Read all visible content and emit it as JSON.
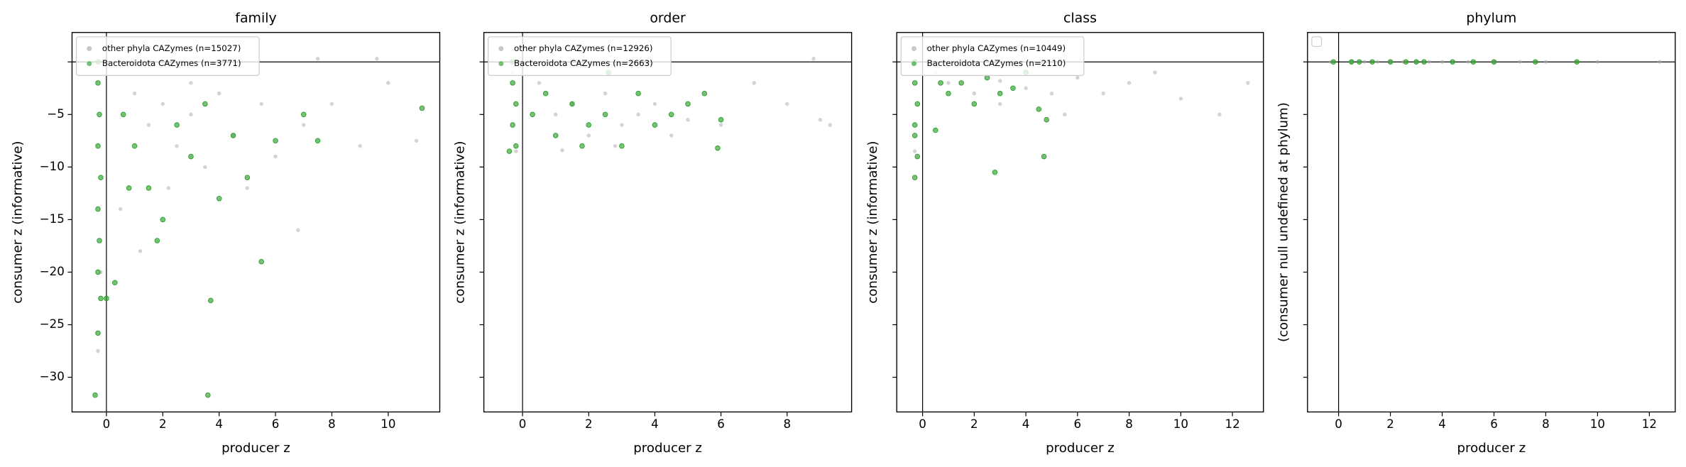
{
  "chart_data": [
    {
      "type": "scatter",
      "title": "family",
      "xlabel": "producer z",
      "ylabel": "consumer z (informative)",
      "xlim": [
        -1.22,
        11.83
      ],
      "ylim": [
        -33.3,
        2.8
      ],
      "xticks": [
        0,
        2,
        4,
        6,
        8,
        10
      ],
      "yticks": [
        0,
        {
          "value": -5,
          "label": "−5"
        },
        {
          "value": -10,
          "label": "−10"
        },
        {
          "value": -15,
          "label": "−15"
        },
        {
          "value": -20,
          "label": "−20"
        },
        {
          "value": -25,
          "label": "−25"
        },
        {
          "value": -30,
          "label": "−30"
        }
      ],
      "legend": "upper left",
      "series": [
        {
          "name": "other phyla CAZymes (n=15027)",
          "color": "#a9a9a9",
          "x": [
            1,
            1.5,
            2,
            2.5,
            3,
            3.5,
            4,
            4.5,
            5,
            5.5,
            6,
            7,
            8,
            9,
            10,
            11,
            6.8,
            -0.3,
            -0.2,
            0.5,
            1.2,
            2.2,
            3,
            7.5,
            9.6
          ],
          "y": [
            -3,
            -6,
            -4,
            -8,
            -5,
            -10,
            -3,
            -7,
            -12,
            -4,
            -9,
            -6,
            -4,
            -8,
            -2,
            -7.5,
            -16,
            -27.5,
            -20,
            -14,
            -18,
            -12,
            -2,
            0.3,
            0.3
          ]
        },
        {
          "name": "Bacteroidota CAZymes (n=3771)",
          "color": "#2ca02c",
          "x": [
            -0.3,
            -0.3,
            -0.25,
            -0.3,
            -0.2,
            -0.3,
            -0.25,
            -0.3,
            -0.2,
            -0.3,
            -0.4,
            0,
            0.3,
            1,
            1.5,
            2,
            2.5,
            3,
            3.5,
            4,
            4.5,
            5,
            5.5,
            6,
            7,
            7.5,
            11.2,
            3.7,
            3.6,
            1.8,
            0.6,
            0.8
          ],
          "y": [
            0,
            -2,
            -5,
            -8,
            -11,
            -14,
            -17,
            -20,
            -22.5,
            -25.8,
            -31.7,
            -22.5,
            -21,
            -8,
            -12,
            -15,
            -6,
            -9,
            -4,
            -13,
            -7,
            -11,
            -19,
            -7.5,
            -5,
            -7.5,
            -4.4,
            -22.7,
            -31.7,
            -17,
            -5,
            -12
          ]
        }
      ]
    },
    {
      "type": "scatter",
      "title": "order",
      "xlabel": "producer z",
      "ylabel": "consumer z (informative)",
      "xlim": [
        -1.17,
        9.95
      ],
      "ylim": [
        -33.3,
        2.8
      ],
      "xticks": [
        0,
        2,
        4,
        6,
        8
      ],
      "legend": "upper left",
      "series": [
        {
          "name": "other phyla CAZymes (n=12926)",
          "color": "#a9a9a9",
          "x": [
            0.5,
            1,
            1.5,
            2,
            2.5,
            3,
            3.5,
            4,
            4.5,
            5,
            6,
            7,
            8,
            9,
            9.3,
            8.8,
            -0.2,
            -0.3,
            1.2,
            2.8
          ],
          "y": [
            -2,
            -5,
            -4,
            -7,
            -3,
            -6,
            -5,
            -4,
            -7,
            -5.5,
            -6,
            -2,
            -4,
            -5.5,
            -6,
            0.3,
            -8.5,
            -1,
            -8.4,
            -8
          ]
        },
        {
          "name": "Bacteroidota CAZymes (n=2663)",
          "color": "#2ca02c",
          "x": [
            -0.3,
            -0.3,
            -0.2,
            -0.3,
            -0.2,
            -0.4,
            0.3,
            0.7,
            1,
            1.5,
            2,
            2.5,
            3,
            3.5,
            4,
            4.5,
            5,
            5.5,
            6,
            5.9,
            1.8,
            2.6
          ],
          "y": [
            0,
            -2,
            -4,
            -6,
            -8,
            -8.5,
            -5,
            -3,
            -7,
            -4,
            -6,
            -5,
            -8,
            -3,
            -6,
            -5,
            -4,
            -3,
            -5.5,
            -8.2,
            -8,
            -1
          ]
        }
      ]
    },
    {
      "type": "scatter",
      "title": "class",
      "xlabel": "producer z",
      "ylabel": "consumer z (informative)",
      "xlim": [
        -1.0,
        13.2
      ],
      "ylim": [
        -33.3,
        2.8
      ],
      "xticks": [
        0,
        2,
        4,
        6,
        8,
        10,
        12
      ],
      "legend": "upper left",
      "series": [
        {
          "name": "other phyla CAZymes (n=10449)",
          "color": "#a9a9a9",
          "x": [
            0.5,
            1,
            2,
            3,
            4,
            5,
            6,
            7,
            8,
            9,
            10,
            11.5,
            12.6,
            -0.3,
            3,
            5.5
          ],
          "y": [
            -1,
            -2,
            -3,
            -4,
            -2.5,
            -3,
            -1.5,
            -3,
            -2,
            -1,
            -3.5,
            -5,
            -2,
            -8.5,
            -1.8,
            -5
          ]
        },
        {
          "name": "Bacteroidota CAZymes (n=2110)",
          "color": "#2ca02c",
          "x": [
            -0.3,
            -0.3,
            -0.2,
            -0.3,
            -0.2,
            -0.3,
            -0.3,
            0.5,
            0.7,
            1,
            1.5,
            2,
            2.5,
            3,
            3.5,
            4,
            4.5,
            4.7,
            2.8,
            4.8
          ],
          "y": [
            0,
            -2,
            -4,
            -6,
            -9,
            -11,
            -7,
            -6.5,
            -2,
            -3,
            -2,
            -4,
            -1.5,
            -3,
            -2.5,
            -1,
            -4.5,
            -9,
            -10.5,
            -5.5
          ]
        }
      ]
    },
    {
      "type": "scatter",
      "title": "phylum",
      "xlabel": "producer z",
      "ylabel": "(consumer null undefined at phylum)",
      "xlim": [
        -1.2,
        13.0
      ],
      "ylim": [
        -33.3,
        2.8
      ],
      "xticks": [
        0,
        2,
        4,
        6,
        8,
        10,
        12
      ],
      "legend": "upper left",
      "series": [
        {
          "color": "#a9a9a9",
          "x": [
            -0.3,
            0.5,
            1,
            1.5,
            2,
            2.5,
            3,
            3.5,
            4,
            5,
            6,
            7,
            8,
            10,
            12.4
          ],
          "y": [
            0,
            0,
            0,
            0,
            0,
            0,
            0,
            0,
            0,
            0,
            0,
            0,
            0,
            0,
            0
          ]
        },
        {
          "color": "#2ca02c",
          "x": [
            -0.2,
            0.5,
            0.8,
            1.3,
            2,
            2.6,
            3,
            3.3,
            4.4,
            5.2,
            6,
            7.6,
            9.2
          ],
          "y": [
            0,
            0,
            0,
            0,
            0,
            0,
            0,
            0,
            0,
            0,
            0,
            0,
            0
          ]
        }
      ]
    }
  ]
}
